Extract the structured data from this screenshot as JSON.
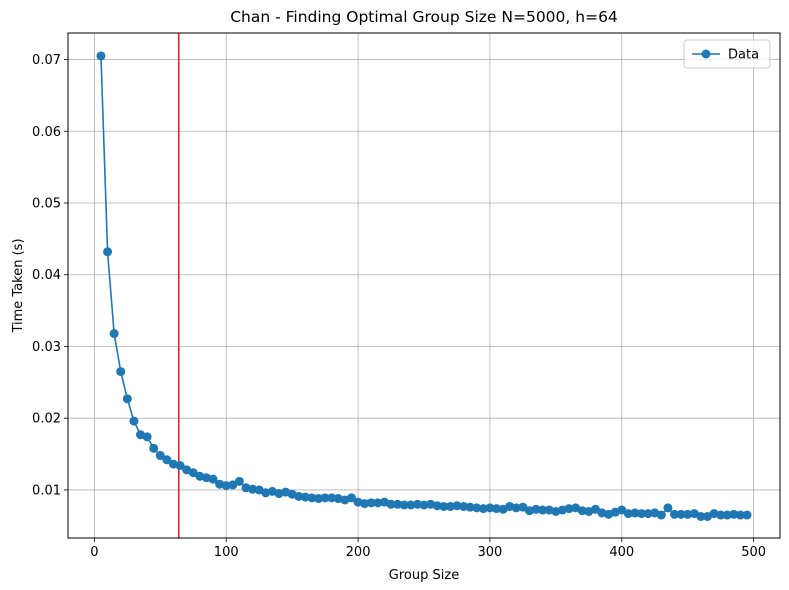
{
  "chart_data": {
    "type": "line",
    "title": "Chan - Finding Optimal Group Size N=5000, h=64",
    "xlabel": "Group Size",
    "ylabel": "Time Taken (s)",
    "xlim": [
      -20,
      520
    ],
    "ylim": [
      0.0033,
      0.0737
    ],
    "xticks": [
      0,
      100,
      200,
      300,
      400,
      500
    ],
    "yticks": [
      0.01,
      0.02,
      0.03,
      0.04,
      0.05,
      0.06,
      0.07
    ],
    "grid": true,
    "legend": {
      "position": "top-right",
      "entries": [
        "Data"
      ]
    },
    "colors": {
      "series": "#1f77b4",
      "vline": "#d62728"
    },
    "vline_x": 64,
    "series": [
      {
        "name": "Data",
        "x": [
          5,
          10,
          15,
          20,
          25,
          30,
          35,
          40,
          45,
          50,
          55,
          60,
          65,
          70,
          75,
          80,
          85,
          90,
          95,
          100,
          105,
          110,
          115,
          120,
          125,
          130,
          135,
          140,
          145,
          150,
          155,
          160,
          165,
          170,
          175,
          180,
          185,
          190,
          195,
          200,
          205,
          210,
          215,
          220,
          225,
          230,
          235,
          240,
          245,
          250,
          255,
          260,
          265,
          270,
          275,
          280,
          285,
          290,
          295,
          300,
          305,
          310,
          315,
          320,
          325,
          330,
          335,
          340,
          345,
          350,
          355,
          360,
          365,
          370,
          375,
          380,
          385,
          390,
          395,
          400,
          405,
          410,
          415,
          420,
          425,
          430,
          435,
          440,
          445,
          450,
          455,
          460,
          465,
          470,
          475,
          480,
          485,
          490,
          495
        ],
        "y": [
          0.0705,
          0.0432,
          0.0318,
          0.0265,
          0.0227,
          0.0196,
          0.0177,
          0.0174,
          0.0158,
          0.0148,
          0.0142,
          0.0136,
          0.0134,
          0.0128,
          0.0124,
          0.0119,
          0.0117,
          0.0115,
          0.0108,
          0.0106,
          0.0107,
          0.0112,
          0.0103,
          0.0101,
          0.01,
          0.0096,
          0.0098,
          0.0095,
          0.0097,
          0.0094,
          0.0091,
          0.009,
          0.0089,
          0.0088,
          0.0089,
          0.0089,
          0.0088,
          0.0086,
          0.0089,
          0.0083,
          0.0081,
          0.0082,
          0.0082,
          0.0083,
          0.008,
          0.008,
          0.0079,
          0.0079,
          0.008,
          0.0079,
          0.008,
          0.0078,
          0.0077,
          0.0077,
          0.0078,
          0.0077,
          0.0076,
          0.0075,
          0.0074,
          0.0075,
          0.0074,
          0.0073,
          0.0077,
          0.0075,
          0.0076,
          0.0071,
          0.0073,
          0.0072,
          0.0072,
          0.007,
          0.0072,
          0.0074,
          0.0075,
          0.0071,
          0.007,
          0.0073,
          0.0068,
          0.0066,
          0.0069,
          0.0072,
          0.0067,
          0.0068,
          0.0067,
          0.0067,
          0.0068,
          0.0065,
          0.0075,
          0.0066,
          0.0066,
          0.0066,
          0.0067,
          0.0063,
          0.0063,
          0.0067,
          0.0065,
          0.0065,
          0.0066,
          0.0065,
          0.0065
        ]
      }
    ]
  }
}
